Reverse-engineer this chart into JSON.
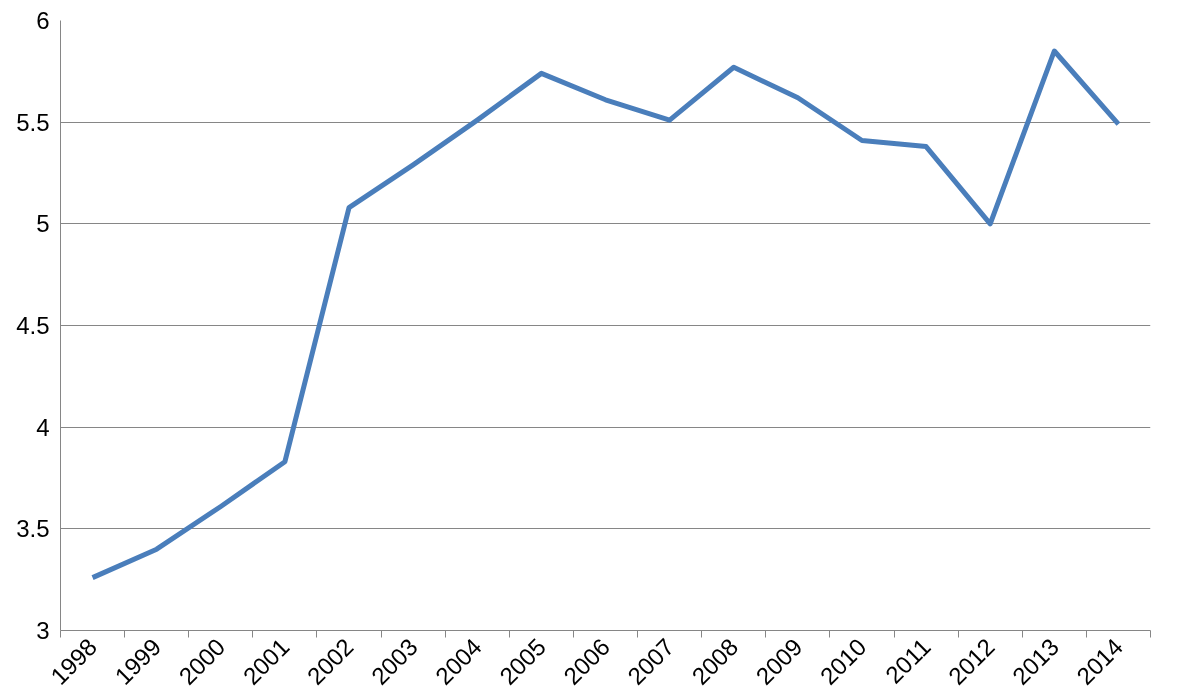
{
  "chart_data": {
    "type": "line",
    "categories": [
      "1998",
      "1999",
      "2000",
      "2001",
      "2002",
      "2003",
      "2004",
      "2005",
      "2006",
      "2007",
      "2008",
      "2009",
      "2010",
      "2011",
      "2012",
      "2013",
      "2014"
    ],
    "series": [
      {
        "color": "#4a7ebb",
        "values": [
          3.26,
          3.4,
          3.61,
          3.83,
          5.08,
          5.29,
          5.51,
          5.74,
          5.61,
          5.51,
          5.77,
          5.62,
          5.41,
          5.38,
          5.0,
          5.85,
          5.49
        ]
      }
    ],
    "ylim": [
      3,
      6
    ],
    "yticks": [
      3,
      3.5,
      4,
      4.5,
      5,
      5.5,
      6
    ],
    "grid": "y",
    "marker": "none",
    "line_style": "solid"
  }
}
